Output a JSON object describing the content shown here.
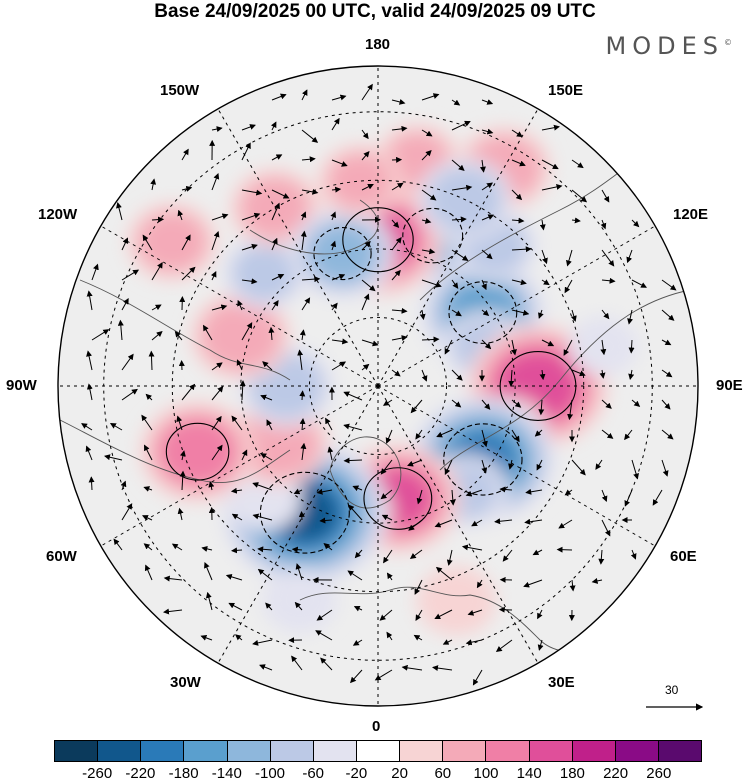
{
  "title": "Base 24/09/2025 00 UTC, valid 24/09/2025 09 UTC",
  "brand": "MODES",
  "brand_mark": "©",
  "lon_labels": {
    "top": "180",
    "bottom": "0",
    "left": "90W",
    "right": "90E",
    "ul1": "150W",
    "ul2": "120W",
    "ur1": "150E",
    "ur2": "120E",
    "ll1": "60W",
    "ll2": "30W",
    "lr1": "60E",
    "lr2": "30E"
  },
  "reference_vector": "30",
  "colorbar": {
    "colors": [
      "#0b3a5c",
      "#11578c",
      "#2a7ab8",
      "#5a9fce",
      "#8eb7dc",
      "#bcc9e6",
      "#e3e3f0",
      "#ffffff",
      "#f7d4d4",
      "#f4aab8",
      "#f07fa6",
      "#e04f9a",
      "#c0208a",
      "#8a0b86",
      "#5a0a6e"
    ],
    "ticks": [
      "-260",
      "-220",
      "-180",
      "-140",
      "-100",
      "-60",
      "-20",
      "20",
      "60",
      "100",
      "140",
      "180",
      "220",
      "260"
    ]
  },
  "anomalies": [
    {
      "lon": 160,
      "lat": 55,
      "value": -110
    },
    {
      "lon": 125,
      "lat": 62,
      "value": -140
    },
    {
      "lon": 180,
      "lat": 58,
      "value": 150
    },
    {
      "lon": 170,
      "lat": 40,
      "value": 60
    },
    {
      "lon": 150,
      "lat": 35,
      "value": 80
    },
    {
      "lon": 140,
      "lat": 50,
      "value": -60
    },
    {
      "lon": 155,
      "lat": 45,
      "value": -80
    },
    {
      "lon": 110,
      "lat": 65,
      "value": -60
    },
    {
      "lon": 90,
      "lat": 55,
      "value": 170
    },
    {
      "lon": 70,
      "lat": 60,
      "value": 60
    },
    {
      "lon": 55,
      "lat": 62,
      "value": -180
    },
    {
      "lon": 40,
      "lat": 60,
      "value": -60
    },
    {
      "lon": 10,
      "lat": 65,
      "value": 140
    },
    {
      "lon": -10,
      "lat": 62,
      "value": 40
    },
    {
      "lon": -30,
      "lat": 58,
      "value": -220
    },
    {
      "lon": -45,
      "lat": 55,
      "value": -40
    },
    {
      "lon": -60,
      "lat": 65,
      "value": 90
    },
    {
      "lon": -70,
      "lat": 48,
      "value": 120
    },
    {
      "lon": -90,
      "lat": 70,
      "value": -80
    },
    {
      "lon": -110,
      "lat": 58,
      "value": 90
    },
    {
      "lon": -135,
      "lat": 55,
      "value": -60
    },
    {
      "lon": -150,
      "lat": 45,
      "value": 70
    },
    {
      "lon": -165,
      "lat": 60,
      "value": -100
    },
    {
      "lon": -175,
      "lat": 45,
      "value": 60
    },
    {
      "lon": -125,
      "lat": 35,
      "value": 70
    },
    {
      "lon": 20,
      "lat": 40,
      "value": 50
    },
    {
      "lon": -20,
      "lat": 40,
      "value": -40
    },
    {
      "lon": 100,
      "lat": 40,
      "value": -30
    }
  ]
}
